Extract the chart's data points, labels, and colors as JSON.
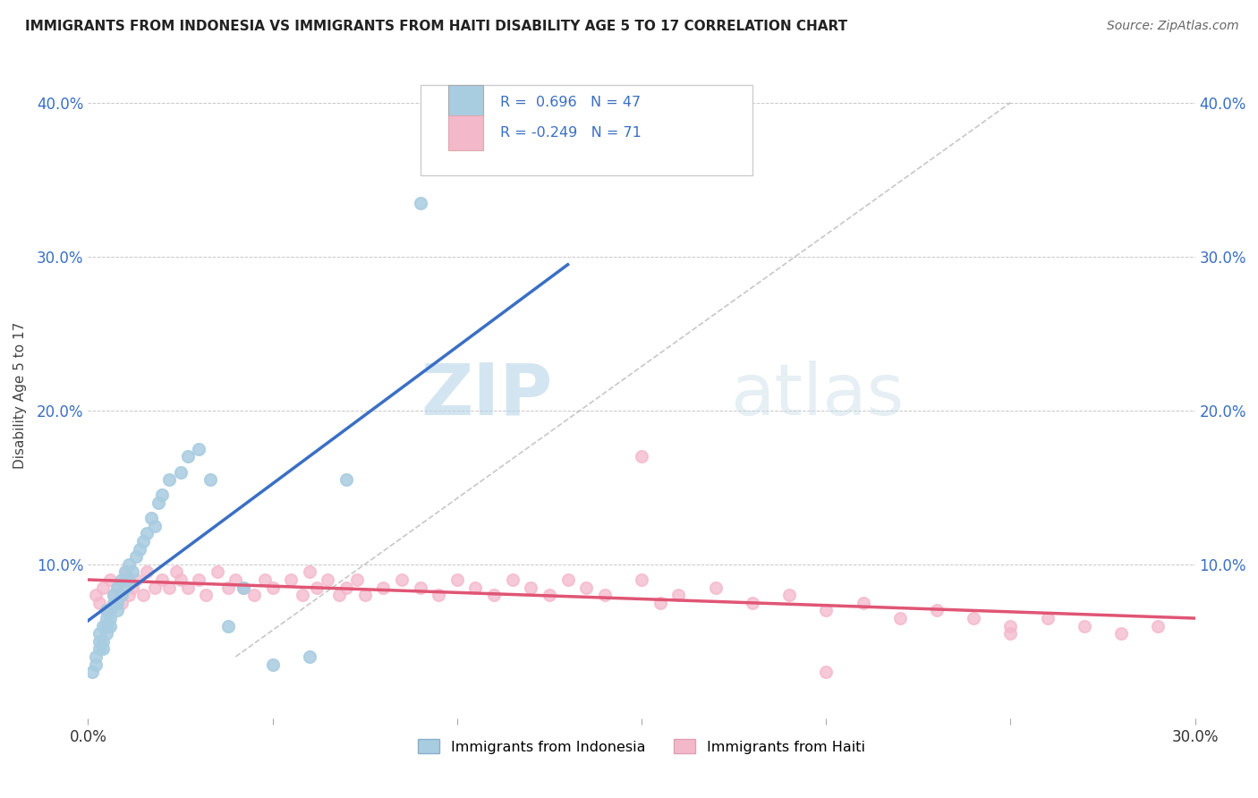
{
  "title": "IMMIGRANTS FROM INDONESIA VS IMMIGRANTS FROM HAITI DISABILITY AGE 5 TO 17 CORRELATION CHART",
  "source": "Source: ZipAtlas.com",
  "ylabel": "Disability Age 5 to 17",
  "xlim": [
    0.0,
    0.3
  ],
  "ylim": [
    0.0,
    0.42
  ],
  "xticks": [
    0.0,
    0.05,
    0.1,
    0.15,
    0.2,
    0.25,
    0.3
  ],
  "yticks": [
    0.0,
    0.1,
    0.2,
    0.3,
    0.4
  ],
  "r_indonesia": 0.696,
  "n_indonesia": 47,
  "r_haiti": -0.249,
  "n_haiti": 71,
  "color_indonesia": "#a8cce0",
  "color_haiti": "#f4b8cb",
  "trend_color_indonesia": "#3a6fc4",
  "trend_color_haiti": "#e05575",
  "background_color": "#ffffff",
  "grid_color": "#c8c8c8",
  "watermark_zip": "ZIP",
  "watermark_atlas": "atlas",
  "indonesia_x": [
    0.001,
    0.002,
    0.002,
    0.003,
    0.003,
    0.003,
    0.004,
    0.004,
    0.004,
    0.005,
    0.005,
    0.005,
    0.005,
    0.006,
    0.006,
    0.006,
    0.007,
    0.007,
    0.008,
    0.008,
    0.008,
    0.009,
    0.009,
    0.01,
    0.01,
    0.011,
    0.011,
    0.012,
    0.013,
    0.014,
    0.015,
    0.016,
    0.017,
    0.018,
    0.019,
    0.02,
    0.022,
    0.025,
    0.027,
    0.03,
    0.033,
    0.038,
    0.042,
    0.05,
    0.06,
    0.07,
    0.09
  ],
  "indonesia_y": [
    0.03,
    0.04,
    0.035,
    0.05,
    0.045,
    0.055,
    0.05,
    0.06,
    0.045,
    0.06,
    0.055,
    0.065,
    0.07,
    0.065,
    0.07,
    0.06,
    0.075,
    0.08,
    0.07,
    0.075,
    0.085,
    0.08,
    0.09,
    0.085,
    0.095,
    0.09,
    0.1,
    0.095,
    0.105,
    0.11,
    0.115,
    0.12,
    0.13,
    0.125,
    0.14,
    0.145,
    0.155,
    0.16,
    0.17,
    0.175,
    0.155,
    0.06,
    0.085,
    0.035,
    0.04,
    0.155,
    0.335
  ],
  "haiti_x": [
    0.002,
    0.003,
    0.004,
    0.005,
    0.006,
    0.007,
    0.008,
    0.009,
    0.01,
    0.01,
    0.011,
    0.012,
    0.013,
    0.015,
    0.016,
    0.018,
    0.02,
    0.022,
    0.024,
    0.025,
    0.027,
    0.03,
    0.032,
    0.035,
    0.038,
    0.04,
    0.042,
    0.045,
    0.048,
    0.05,
    0.055,
    0.058,
    0.06,
    0.062,
    0.065,
    0.068,
    0.07,
    0.073,
    0.075,
    0.08,
    0.085,
    0.09,
    0.095,
    0.1,
    0.105,
    0.11,
    0.115,
    0.12,
    0.125,
    0.13,
    0.135,
    0.14,
    0.15,
    0.155,
    0.16,
    0.17,
    0.18,
    0.19,
    0.2,
    0.21,
    0.22,
    0.23,
    0.24,
    0.25,
    0.26,
    0.27,
    0.28,
    0.29,
    0.15,
    0.2,
    0.25
  ],
  "haiti_y": [
    0.08,
    0.075,
    0.085,
    0.07,
    0.09,
    0.08,
    0.085,
    0.075,
    0.09,
    0.095,
    0.08,
    0.085,
    0.09,
    0.08,
    0.095,
    0.085,
    0.09,
    0.085,
    0.095,
    0.09,
    0.085,
    0.09,
    0.08,
    0.095,
    0.085,
    0.09,
    0.085,
    0.08,
    0.09,
    0.085,
    0.09,
    0.08,
    0.095,
    0.085,
    0.09,
    0.08,
    0.085,
    0.09,
    0.08,
    0.085,
    0.09,
    0.085,
    0.08,
    0.09,
    0.085,
    0.08,
    0.09,
    0.085,
    0.08,
    0.09,
    0.085,
    0.08,
    0.09,
    0.075,
    0.08,
    0.085,
    0.075,
    0.08,
    0.07,
    0.075,
    0.065,
    0.07,
    0.065,
    0.06,
    0.065,
    0.06,
    0.055,
    0.06,
    0.17,
    0.03,
    0.055
  ]
}
